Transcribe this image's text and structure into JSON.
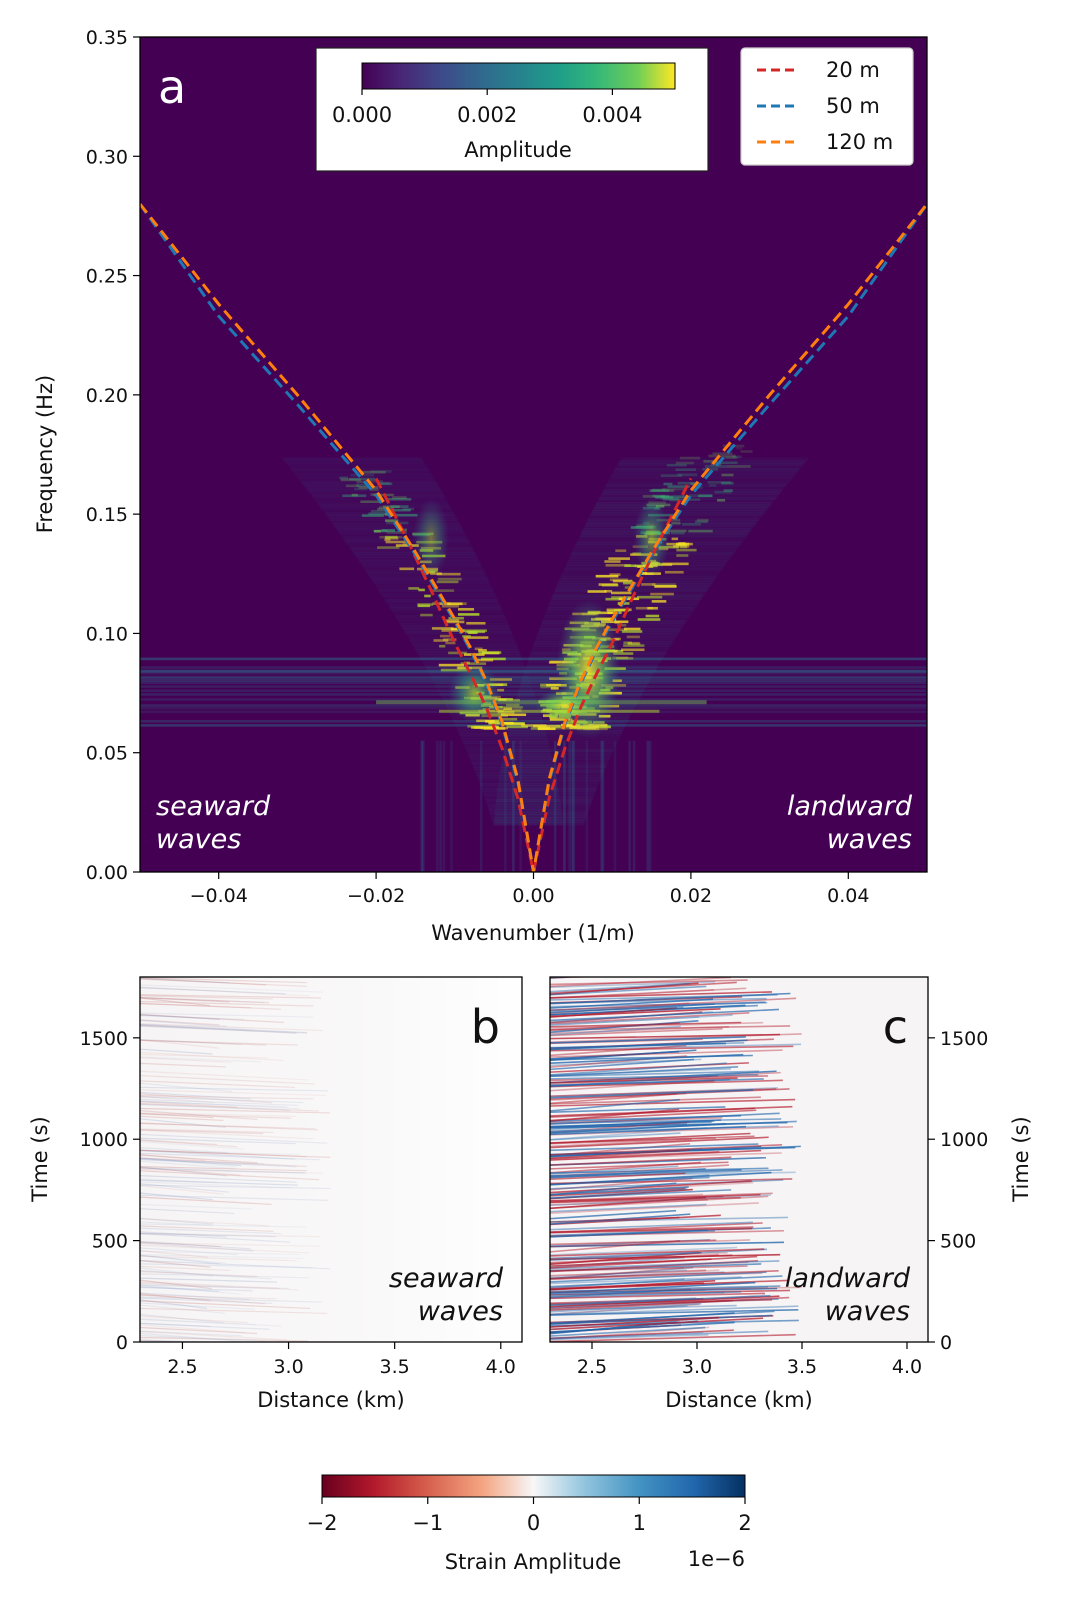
{
  "figure": {
    "panel_a": {
      "letter": "a",
      "xlabel": "Wavenumber (1/m)",
      "ylabel": "Frequency (Hz)",
      "left_note": [
        "seaward",
        "waves"
      ],
      "right_note": [
        "landward",
        "waves"
      ],
      "colorbar": {
        "label": "Amplitude",
        "ticks": [
          "0.000",
          "0.002",
          "0.004"
        ],
        "range": [
          0,
          0.005
        ],
        "colormap": "viridis"
      }
    },
    "panel_b": {
      "letter": "b",
      "xlabel": "Distance (km)",
      "ylabel": "Time (s)",
      "note": [
        "seaward",
        "waves"
      ]
    },
    "panel_c": {
      "letter": "c",
      "xlabel": "Distance (km)",
      "ylabel": "Time (s)",
      "note": [
        "landward",
        "waves"
      ]
    },
    "strain_colorbar": {
      "label": "Strain Amplitude",
      "multiplier": "1e−6",
      "ticks": [
        "−2",
        "−1",
        "0",
        "1",
        "2"
      ],
      "range": [
        -2,
        2
      ],
      "colormap": "RdBu"
    }
  },
  "colors": {
    "background_dark": "#440154",
    "series_20m": "#d62728",
    "series_50m": "#1f77b4",
    "series_120m": "#ff7f0e"
  },
  "chart_data": [
    {
      "type": "heatmap",
      "panel": "a",
      "xlabel": "Wavenumber (1/m)",
      "ylabel": "Frequency (Hz)",
      "xlim": [
        -0.05,
        0.05
      ],
      "ylim": [
        0,
        0.35
      ],
      "xticks": [
        -0.04,
        -0.02,
        0.0,
        0.02,
        0.04
      ],
      "xtick_labels": [
        "−0.04",
        "−0.02",
        "0.00",
        "0.02",
        "0.04"
      ],
      "yticks": [
        0,
        0.05,
        0.1,
        0.15,
        0.2,
        0.25,
        0.3,
        0.35
      ],
      "ytick_labels": [
        "0.00",
        "0.05",
        "0.10",
        "0.15",
        "0.20",
        "0.25",
        "0.30",
        "0.35"
      ],
      "legend_position": "top-right",
      "series": [
        {
          "name": "20 m",
          "style": "dashed",
          "color": "#d62728",
          "points": [
            [
              0.0,
              0.0
            ],
            [
              0.002,
              0.031
            ],
            [
              0.004,
              0.052
            ],
            [
              0.006,
              0.069
            ],
            [
              0.008,
              0.083
            ],
            [
              0.01,
              0.096
            ],
            [
              0.013,
              0.118
            ],
            [
              0.016,
              0.139
            ],
            [
              0.02,
              0.165
            ]
          ]
        },
        {
          "name": "50 m",
          "style": "dashed",
          "color": "#1f77b4",
          "points": [
            [
              0.0,
              0.0
            ],
            [
              0.002,
              0.038
            ],
            [
              0.004,
              0.062
            ],
            [
              0.006,
              0.079
            ],
            [
              0.008,
              0.093
            ],
            [
              0.01,
              0.105
            ],
            [
              0.015,
              0.133
            ],
            [
              0.02,
              0.158
            ],
            [
              0.03,
              0.196
            ],
            [
              0.04,
              0.233
            ],
            [
              0.05,
              0.28
            ]
          ]
        },
        {
          "name": "120 m",
          "style": "dashed",
          "color": "#ff7f0e",
          "points": [
            [
              0.0,
              0.0
            ],
            [
              0.002,
              0.039
            ],
            [
              0.004,
              0.063
            ],
            [
              0.006,
              0.08
            ],
            [
              0.008,
              0.094
            ],
            [
              0.01,
              0.106
            ],
            [
              0.015,
              0.134
            ],
            [
              0.02,
              0.16
            ],
            [
              0.03,
              0.2
            ],
            [
              0.04,
              0.238
            ],
            [
              0.05,
              0.28
            ]
          ]
        }
      ],
      "notes": [
        "curves are mirrored for negative wavenumber (seaward waves)"
      ]
    },
    {
      "type": "heatmap",
      "panel": "b",
      "xlabel": "Distance (km)",
      "ylabel": "Time (s)",
      "xlim": [
        2.3,
        4.1
      ],
      "ylim": [
        0,
        1800
      ],
      "xticks": [
        2.5,
        3.0,
        3.5,
        4.0
      ],
      "xtick_labels": [
        "2.5",
        "3.0",
        "3.5",
        "4.0"
      ],
      "yticks": [
        0,
        500,
        1000,
        1500
      ],
      "ytick_labels": [
        "0",
        "500",
        "1000",
        "1500"
      ]
    },
    {
      "type": "heatmap",
      "panel": "c",
      "xlabel": "Distance (km)",
      "ylabel": "Time (s)",
      "xlim": [
        2.3,
        4.1
      ],
      "ylim": [
        0,
        1800
      ],
      "xticks": [
        2.5,
        3.0,
        3.5,
        4.0
      ],
      "xtick_labels": [
        "2.5",
        "3.0",
        "3.5",
        "4.0"
      ],
      "yticks": [
        0,
        500,
        1000,
        1500
      ],
      "ytick_labels": [
        "0",
        "500",
        "1000",
        "1500"
      ]
    }
  ]
}
